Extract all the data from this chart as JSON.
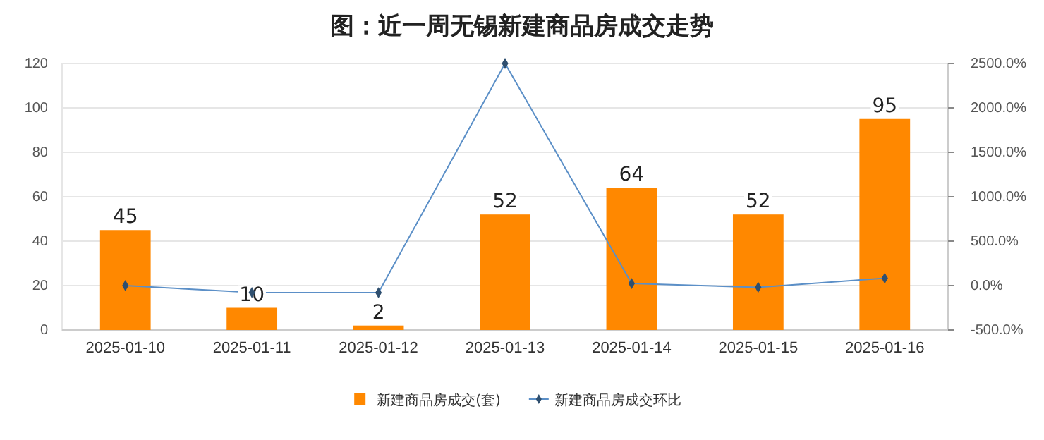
{
  "chart_data": {
    "type": "bar",
    "title": "图：近一周无锡新建商品房成交走势",
    "categories": [
      "2025-01-10",
      "2025-01-11",
      "2025-01-12",
      "2025-01-13",
      "2025-01-14",
      "2025-01-15",
      "2025-01-16"
    ],
    "series": [
      {
        "name": "新建商品房成交(套)",
        "color": "#ff8800",
        "values": [
          45,
          10,
          2,
          52,
          64,
          52,
          95
        ],
        "value_labels": [
          "45",
          "10",
          "2",
          "52",
          "64",
          "52",
          "95"
        ]
      },
      {
        "name": "新建商品房成交环比",
        "type": "line",
        "axis": "y2",
        "color": "#5b8fc7",
        "values": [
          0,
          -78,
          -80,
          2500,
          23,
          -19,
          83
        ]
      }
    ],
    "ylim": [
      0,
      120
    ],
    "yticks": [
      0,
      20,
      40,
      60,
      80,
      100,
      120
    ],
    "y2lim": [
      -500,
      2500
    ],
    "y2ticks": [
      {
        "value": -500,
        "label": "-500.0%"
      },
      {
        "value": 0,
        "label": "0.0%"
      },
      {
        "value": 500,
        "label": "500.0%"
      },
      {
        "value": 1000,
        "label": "1000.0%"
      },
      {
        "value": 1500,
        "label": "1500.0%"
      },
      {
        "value": 2000,
        "label": "2000.0%"
      },
      {
        "value": 2500,
        "label": "2500.0%"
      }
    ],
    "grid": "y",
    "legend": "bottom",
    "marker": "diamond",
    "line_style": "solid"
  }
}
